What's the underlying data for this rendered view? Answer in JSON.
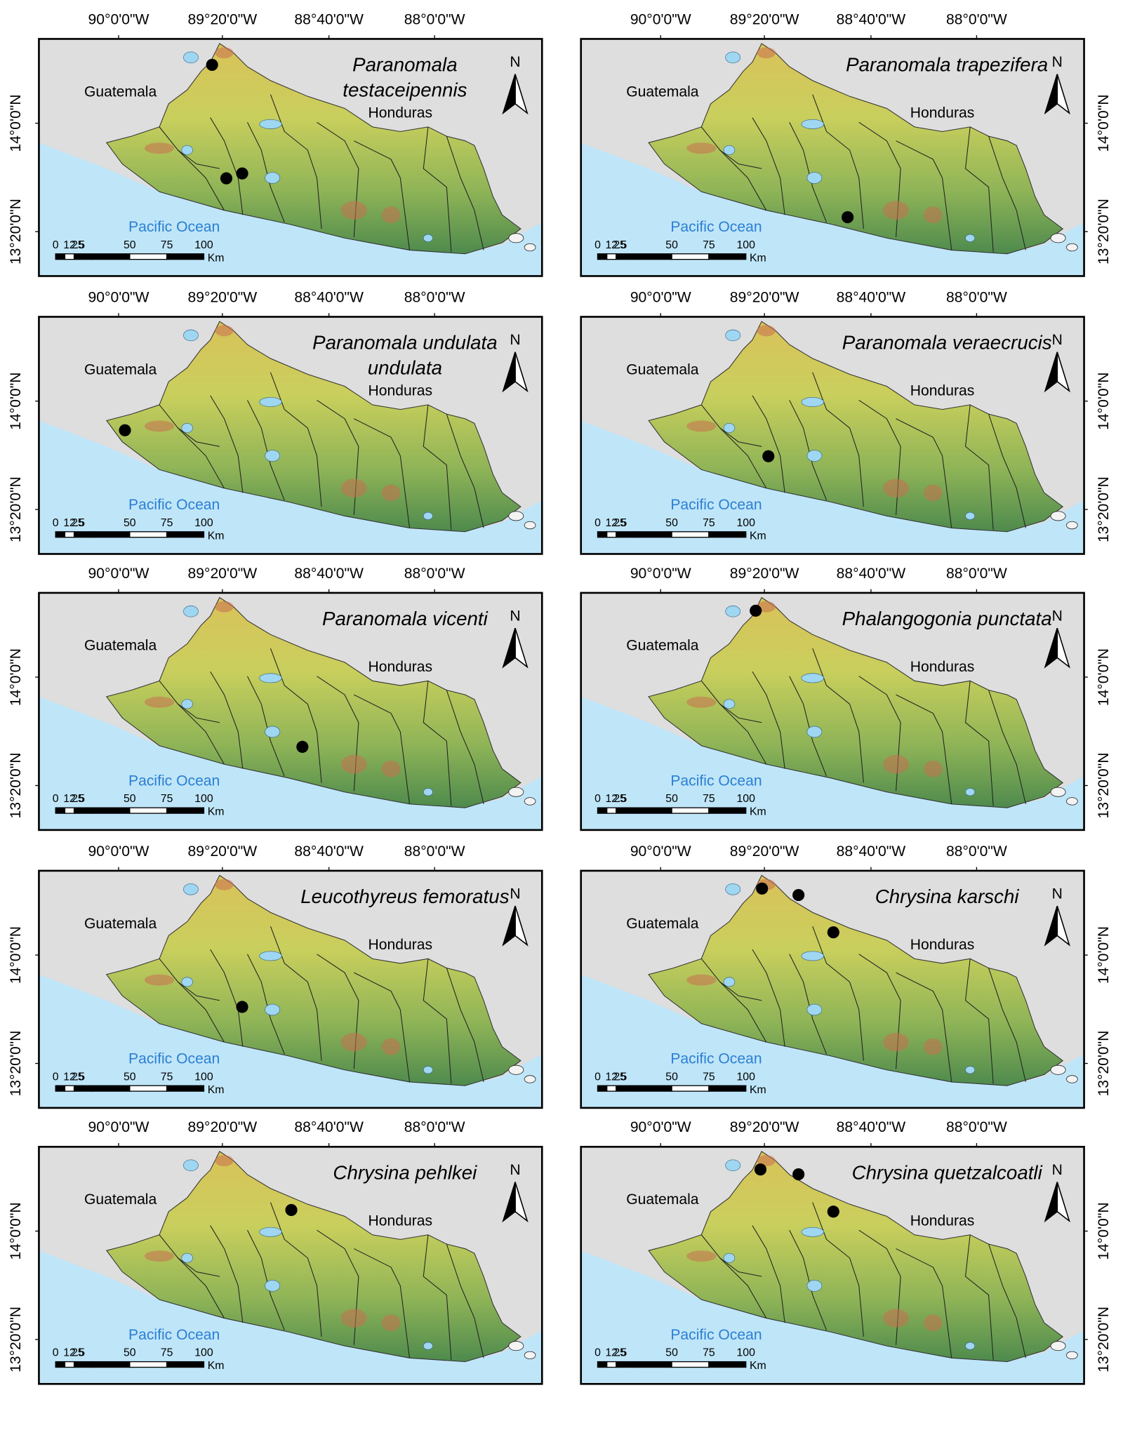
{
  "map_frame": {
    "lon_labels": [
      "90°0'0\"W",
      "89°20'0\"W",
      "88°40'0\"W",
      "88°0'0\"W"
    ],
    "lat_labels": [
      "14°0'0\"N",
      "13°20'0\"N"
    ],
    "place_labels": {
      "guatemala": "Guatemala",
      "honduras": "Honduras",
      "ocean": "Pacific Ocean"
    },
    "north": "N",
    "scale_labels": [
      "0",
      "12.5",
      "25",
      "50",
      "75",
      "100"
    ],
    "scale_unit": "Km"
  },
  "panels": [
    {
      "title": [
        "Paranomala",
        "testaceipennis"
      ],
      "points": [
        {
          "lon": -89.41,
          "lat": 14.36
        },
        {
          "lon": -89.32,
          "lat": 13.66
        },
        {
          "lon": -89.22,
          "lat": 13.69
        }
      ]
    },
    {
      "title": [
        "Paranomala trapezifera"
      ],
      "points": [
        {
          "lon": -88.82,
          "lat": 13.42
        }
      ]
    },
    {
      "title": [
        "Paranomala undulata",
        "undulata"
      ],
      "points": [
        {
          "lon": -89.96,
          "lat": 13.82
        }
      ]
    },
    {
      "title": [
        "Paranomala veraecrucis"
      ],
      "points": [
        {
          "lon": -89.32,
          "lat": 13.66
        }
      ]
    },
    {
      "title": [
        "Paranomala vicenti"
      ],
      "points": [
        {
          "lon": -88.84,
          "lat": 13.57
        }
      ]
    },
    {
      "title": [
        "Phalangogonia punctata"
      ],
      "points": [
        {
          "lon": -89.4,
          "lat": 14.41
        }
      ]
    },
    {
      "title": [
        "Leucothyreus femoratus"
      ],
      "points": [
        {
          "lon": -89.22,
          "lat": 13.68
        }
      ]
    },
    {
      "title": [
        "Chrysina karschi"
      ],
      "points": [
        {
          "lon": -89.36,
          "lat": 14.41
        },
        {
          "lon": -89.13,
          "lat": 14.37
        },
        {
          "lon": -88.91,
          "lat": 14.14
        }
      ]
    },
    {
      "title": [
        "Chrysina pehlkei"
      ],
      "points": [
        {
          "lon": -88.91,
          "lat": 14.13
        }
      ]
    },
    {
      "title": [
        "Chrysina quetzalcoatli"
      ],
      "points": [
        {
          "lon": -89.37,
          "lat": 14.38
        },
        {
          "lon": -89.13,
          "lat": 14.35
        },
        {
          "lon": -88.91,
          "lat": 14.12
        }
      ]
    }
  ]
}
